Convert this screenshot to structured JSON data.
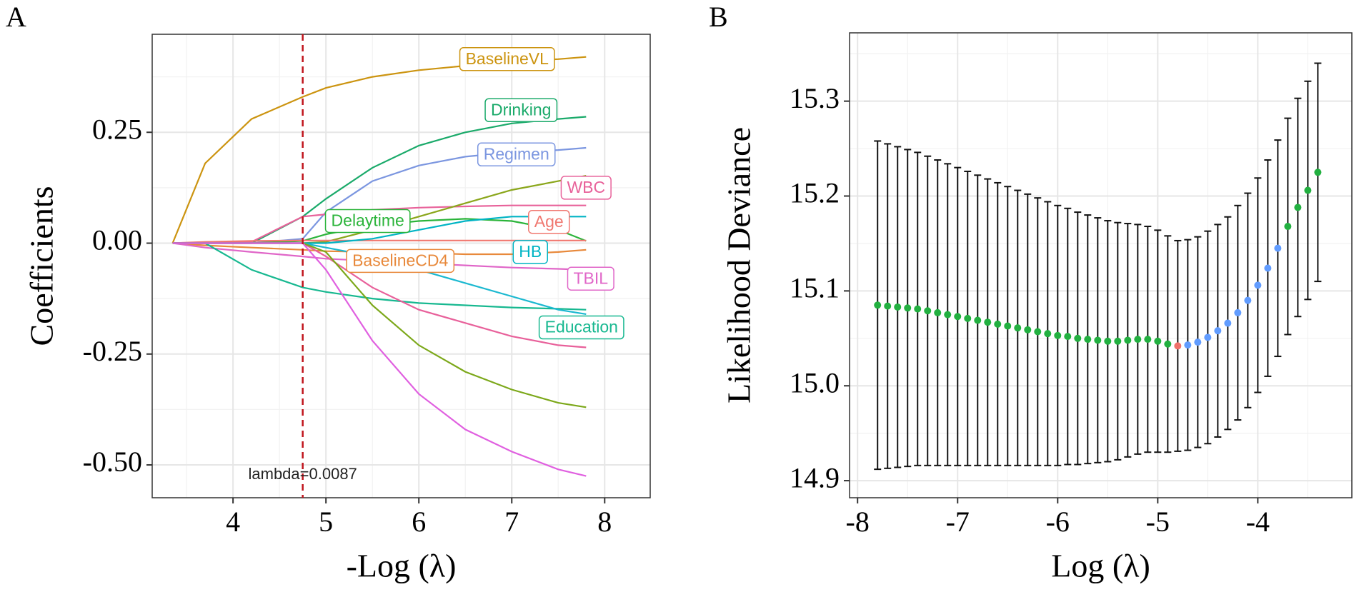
{
  "chart_data": [
    {
      "type": "line",
      "panel": "A",
      "y_label": "Coefficients",
      "x_label": "-Log (λ)",
      "xlim": [
        3.13,
        8.49
      ],
      "ylim": [
        -0.574,
        0.471
      ],
      "xticks": [
        4,
        5,
        6,
        7,
        8
      ],
      "yticks": [
        0.25,
        {
          "value": 0,
          "label": "0.00"
        },
        -0.25,
        {
          "value": -0.5,
          "label": "-0.50"
        }
      ],
      "grid": true,
      "x": [
        3.35,
        3.7,
        4.2,
        4.75,
        5.0,
        5.5,
        6,
        6.5,
        7,
        7.5,
        7.8
      ],
      "vline": {
        "x": 4.75,
        "label": "lambda=0.0087",
        "color": "#c0141c"
      },
      "series": [
        {
          "name": "BaselineVL",
          "color": "#cc9410",
          "values": [
            0,
            0.18,
            0.28,
            0.33,
            0.35,
            0.375,
            0.39,
            0.4,
            0.41,
            0.415,
            0.42
          ]
        },
        {
          "name": "Drinking",
          "color": "#1aaa6a",
          "values": [
            0,
            0,
            0,
            0.06,
            0.1,
            0.17,
            0.22,
            0.25,
            0.27,
            0.28,
            0.285
          ]
        },
        {
          "name": "Regimen",
          "color": "#7b96e0",
          "values": [
            0,
            0,
            0,
            0.01,
            0.07,
            0.14,
            0.175,
            0.195,
            0.205,
            0.21,
            0.215
          ]
        },
        {
          "name": "WBC",
          "color": "#e8629a",
          "values": [
            0,
            0,
            0.003,
            0.06,
            0.065,
            0.075,
            0.08,
            0.083,
            0.085,
            0.085,
            0.085
          ]
        },
        {
          "color": "#8aa61a",
          "values": [
            0,
            0,
            0,
            0,
            0.003,
            0.03,
            0.06,
            0.09,
            0.12,
            0.14,
            0.152
          ]
        },
        {
          "name": "Delaytime",
          "color": "#2bb43a",
          "values": [
            0,
            0,
            0,
            0.005,
            0.02,
            0.04,
            0.05,
            0.055,
            0.05,
            0.03,
            0.005
          ]
        },
        {
          "name": "Age",
          "color": "#f07870",
          "values": [
            0,
            0.003,
            0.005,
            0.006,
            0.006,
            0.006,
            0.006,
            0.006,
            0.006,
            0.006,
            0.006
          ]
        },
        {
          "name": "HB",
          "color": "#00b4c4",
          "values": [
            0,
            0,
            0,
            0,
            0,
            0.01,
            0.03,
            0.05,
            0.06,
            0.06,
            0.06
          ]
        },
        {
          "name": "BaselineCD4",
          "color": "#e8893b",
          "values": [
            0,
            -0.005,
            -0.01,
            -0.015,
            -0.018,
            -0.02,
            -0.022,
            -0.025,
            -0.025,
            -0.02,
            -0.015
          ]
        },
        {
          "name": "TBIL",
          "color": "#e066c8",
          "values": [
            0,
            -0.01,
            -0.02,
            -0.03,
            -0.035,
            -0.04,
            -0.045,
            -0.05,
            -0.055,
            -0.058,
            -0.06
          ]
        },
        {
          "name": "Education",
          "color": "#17b890",
          "values": [
            0,
            0,
            -0.06,
            -0.1,
            -0.11,
            -0.125,
            -0.135,
            -0.14,
            -0.145,
            -0.148,
            -0.15
          ]
        },
        {
          "color": "#1ab8d0",
          "values": [
            0,
            0,
            0,
            0,
            -0.01,
            -0.03,
            -0.06,
            -0.09,
            -0.12,
            -0.15,
            -0.16
          ]
        },
        {
          "color": "#e8609a",
          "values": [
            0,
            0,
            0,
            0,
            -0.03,
            -0.1,
            -0.15,
            -0.18,
            -0.21,
            -0.23,
            -0.235
          ]
        },
        {
          "color": "#7ca81a",
          "values": [
            0,
            0,
            0,
            0,
            -0.02,
            -0.14,
            -0.23,
            -0.29,
            -0.33,
            -0.36,
            -0.37
          ]
        },
        {
          "color": "#e060e0",
          "values": [
            0,
            0,
            0,
            0,
            -0.06,
            -0.22,
            -0.34,
            -0.42,
            -0.47,
            -0.51,
            -0.525
          ]
        }
      ]
    },
    {
      "type": "scatter",
      "panel": "B",
      "y_label": "Likelihood Deviance",
      "x_label": "Log (λ)",
      "xlim": [
        -8.08,
        -3.06
      ],
      "ylim": [
        14.882,
        15.372
      ],
      "xticks": [
        -8,
        -7,
        -6,
        -5,
        -4
      ],
      "yticks": [
        14.9,
        {
          "value": 15,
          "label": "15.0"
        },
        15.1,
        15.2,
        15.3
      ],
      "grid": true,
      "series": [
        {
          "color": "#22b040",
          "x": [
            -7.8,
            -7.7,
            -7.6,
            -7.5,
            -7.4,
            -7.3,
            -7.2,
            -7.1,
            -7.0,
            -6.9,
            -6.8,
            -6.7,
            -6.6,
            -6.5,
            -6.4,
            -6.3,
            -6.2,
            -6.1,
            -6.0,
            -5.9,
            -5.8,
            -5.7,
            -5.6,
            -5.5,
            -5.4,
            -5.3,
            -5.2,
            -5.1,
            -5.0,
            -4.9
          ],
          "values": [
            15.085,
            15.084,
            15.083,
            15.082,
            15.081,
            15.079,
            15.077,
            15.075,
            15.073,
            15.071,
            15.069,
            15.067,
            15.065,
            15.063,
            15.061,
            15.059,
            15.057,
            15.055,
            15.053,
            15.052,
            15.05,
            15.049,
            15.048,
            15.047,
            15.047,
            15.048,
            15.049,
            15.049,
            15.047,
            15.044
          ],
          "errors": [
            0.173,
            0.171,
            0.169,
            0.167,
            0.165,
            0.163,
            0.161,
            0.159,
            0.157,
            0.155,
            0.153,
            0.151,
            0.149,
            0.147,
            0.145,
            0.143,
            0.141,
            0.139,
            0.137,
            0.135,
            0.133,
            0.131,
            0.129,
            0.127,
            0.125,
            0.123,
            0.121,
            0.119,
            0.117,
            0.114
          ]
        },
        {
          "color": "#f0706a",
          "x": [
            -4.8
          ],
          "values": [
            15.042
          ],
          "errors": [
            0.111
          ]
        },
        {
          "color": "#619cff",
          "x": [
            -4.7,
            -4.6,
            -4.5,
            -4.4,
            -4.3,
            -4.2,
            -4.1,
            -4.0,
            -3.9,
            -3.8
          ],
          "values": [
            15.043,
            15.046,
            15.051,
            15.058,
            15.066,
            15.077,
            15.09,
            15.106,
            15.124,
            15.145
          ],
          "errors": [
            0.111,
            0.111,
            0.112,
            0.112,
            0.112,
            0.113,
            0.113,
            0.113,
            0.114,
            0.114
          ]
        },
        {
          "color": "#22b040",
          "x": [
            -3.7,
            -3.6,
            -3.5,
            -3.4
          ],
          "values": [
            15.168,
            15.188,
            15.206,
            15.225
          ],
          "errors": [
            0.114,
            0.115,
            0.115,
            0.115
          ]
        }
      ]
    }
  ]
}
